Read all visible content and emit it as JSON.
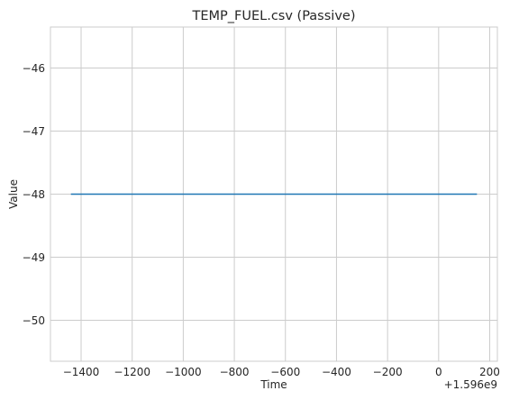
{
  "chart_data": {
    "type": "line",
    "title": "TEMP_FUEL.csv (Passive)",
    "xlabel": "Time",
    "ylabel": "Value",
    "x_offset_label": "+1.596e9",
    "xlim": [
      -1520,
      230
    ],
    "ylim": [
      -50.65,
      -45.35
    ],
    "xticks": [
      -1400,
      -1200,
      -1000,
      -800,
      -600,
      -400,
      -200,
      0,
      200
    ],
    "xtick_labels": [
      "−1400",
      "−1200",
      "−1000",
      "−800",
      "−600",
      "−400",
      "−200",
      "0",
      "200"
    ],
    "yticks": [
      -46,
      -47,
      -48,
      -49,
      -50
    ],
    "ytick_labels": [
      "−46",
      "−47",
      "−48",
      "−49",
      "−50"
    ],
    "grid": true,
    "series": [
      {
        "color": "#1f77b4",
        "x": [
          -1440,
          150
        ],
        "y": [
          -48,
          -48
        ]
      }
    ]
  }
}
